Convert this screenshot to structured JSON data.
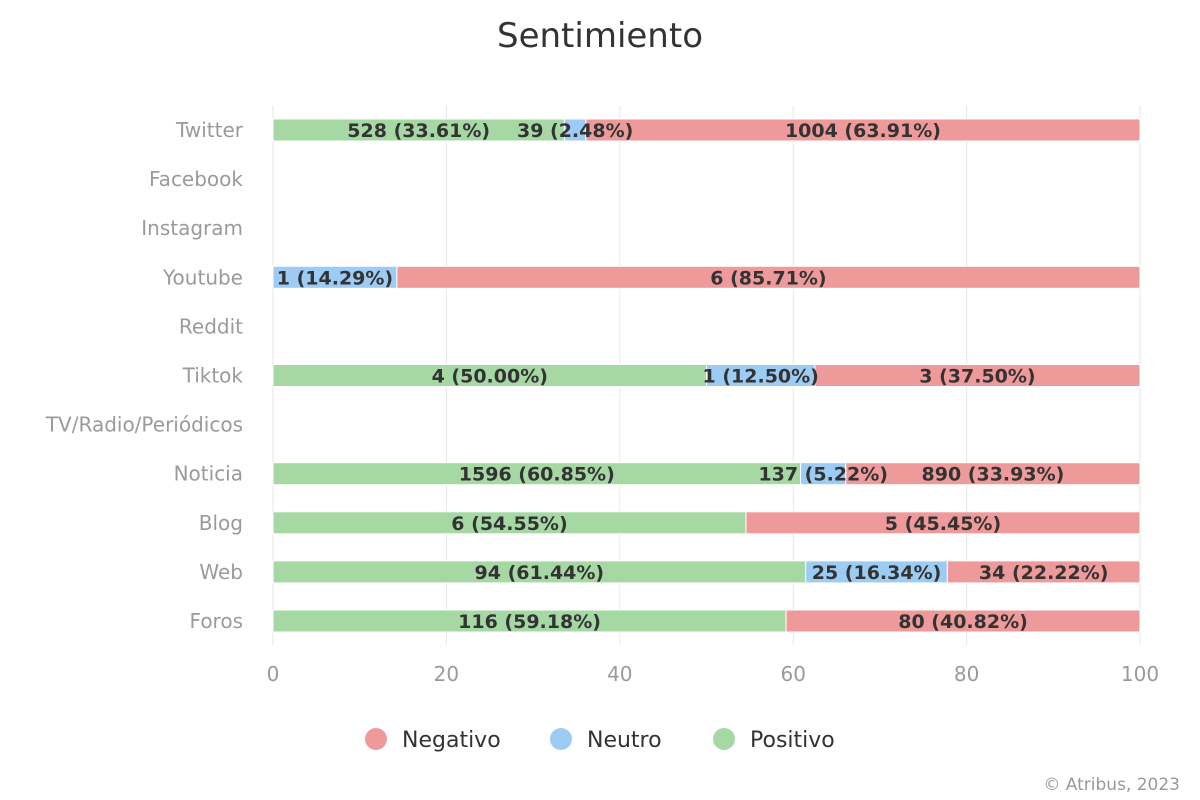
{
  "chart_data": {
    "type": "bar",
    "orientation": "horizontal",
    "stacked": true,
    "title": "Sentimiento",
    "categories": [
      "Twitter",
      "Facebook",
      "Instagram",
      "Youtube",
      "Reddit",
      "Tiktok",
      "TV/Radio/Periódicos",
      "Noticia",
      "Blog",
      "Web",
      "Foros"
    ],
    "xlim": [
      0,
      100
    ],
    "xticks": [
      "0",
      "20",
      "40",
      "60",
      "80",
      "100"
    ],
    "grid": true,
    "legend_position": "bottom",
    "series": [
      {
        "name": "Positivo",
        "color": "#a6d8a4",
        "values": [
          33.61,
          0,
          0,
          0,
          0,
          50.0,
          0,
          60.85,
          54.55,
          61.44,
          59.18
        ],
        "labels": [
          "528 (33.61%)",
          "",
          "",
          "",
          "",
          "4 (50.00%)",
          "",
          "1596 (60.85%)",
          "6 (54.55%)",
          "94 (61.44%)",
          "116 (59.18%)"
        ]
      },
      {
        "name": "Neutro",
        "color": "#9ccbf3",
        "values": [
          2.48,
          0,
          0,
          14.29,
          0,
          12.5,
          0,
          5.22,
          0,
          16.34,
          0
        ],
        "labels": [
          "39 (2.48%)",
          "",
          "",
          "1 (14.29%)",
          "",
          "1 (12.50%)",
          "",
          "137 (5.22%)",
          "",
          "25 (16.34%)",
          ""
        ]
      },
      {
        "name": "Negativo",
        "color": "#ee9a9a",
        "values": [
          63.91,
          0,
          0,
          85.71,
          0,
          37.5,
          0,
          33.93,
          45.45,
          22.22,
          40.82
        ],
        "labels": [
          "1004 (63.91%)",
          "",
          "",
          "6 (85.71%)",
          "",
          "3 (37.50%)",
          "",
          "890 (33.93%)",
          "5 (45.45%)",
          "34 (22.22%)",
          "80 (40.82%)"
        ]
      }
    ],
    "legend_order": [
      "Negativo",
      "Neutro",
      "Positivo"
    ],
    "credit": "© Atribus, 2023"
  },
  "colors": {
    "grid": "#e6e6e6",
    "positivo": "#a6d8a4",
    "neutro": "#9ccbf3",
    "negativo": "#ee9a9a"
  }
}
